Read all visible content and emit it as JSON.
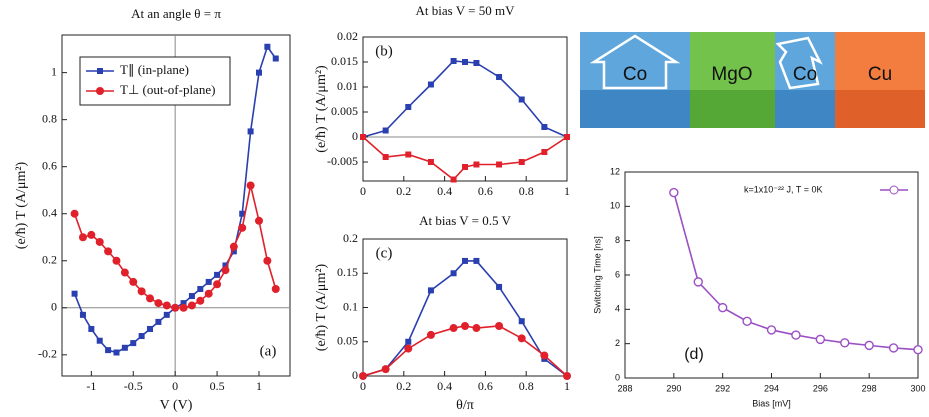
{
  "chart_data": [
    {
      "type": "line",
      "title": "At an angle θ = π",
      "xlabel": "V  (V)",
      "ylabel": "(e/ħ) T   (A/μm²)",
      "annotation": "(a)",
      "x": [
        -1.2,
        -1.1,
        -1.0,
        -0.9,
        -0.8,
        -0.7,
        -0.6,
        -0.5,
        -0.4,
        -0.3,
        -0.2,
        -0.1,
        0,
        0.1,
        0.2,
        0.3,
        0.4,
        0.5,
        0.6,
        0.7,
        0.8,
        0.9,
        1.0,
        1.1,
        1.2
      ],
      "series": [
        {
          "name": "T∥  (in-plane)",
          "color": "#2a3fb0",
          "marker": "square",
          "values": [
            0.06,
            -0.03,
            -0.09,
            -0.14,
            -0.18,
            -0.19,
            -0.17,
            -0.15,
            -0.12,
            -0.09,
            -0.06,
            -0.03,
            0.0,
            0.02,
            0.05,
            0.08,
            0.11,
            0.14,
            0.18,
            0.24,
            0.4,
            0.75,
            1.0,
            1.11,
            1.06
          ]
        },
        {
          "name": "T⊥  (out-of-plane)",
          "color": "#e0202a",
          "marker": "circle",
          "values": [
            0.4,
            0.3,
            0.31,
            0.28,
            0.24,
            0.2,
            0.15,
            0.11,
            0.07,
            0.04,
            0.02,
            0.01,
            0.0,
            0.0,
            0.01,
            0.03,
            0.06,
            0.1,
            0.16,
            0.26,
            0.34,
            0.52,
            0.37,
            0.2,
            0.08
          ]
        }
      ],
      "xlim": [
        -1.35,
        1.37
      ],
      "ylim": [
        -0.29,
        1.16
      ],
      "xticks": [
        -1,
        -0.5,
        0,
        0.5,
        1
      ],
      "yticks": [
        -0.2,
        0,
        0.2,
        0.4,
        0.6,
        0.8,
        1
      ],
      "legend": "upper left"
    },
    {
      "type": "line",
      "title": "At bias V = 50 mV",
      "ylabel": "(e/ħ) T   (A/μm²)",
      "annotation": "(b)",
      "x": [
        0,
        0.111,
        0.222,
        0.333,
        0.444,
        0.5,
        0.556,
        0.667,
        0.778,
        0.889,
        1
      ],
      "series": [
        {
          "color": "#2a3fb0",
          "marker": "square",
          "values": [
            0,
            0.0013,
            0.006,
            0.0105,
            0.0152,
            0.015,
            0.0148,
            0.012,
            0.0075,
            0.002,
            0
          ]
        },
        {
          "color": "#e0202a",
          "marker": "square",
          "values": [
            0,
            -0.004,
            -0.0035,
            -0.005,
            -0.0085,
            -0.006,
            -0.0055,
            -0.0055,
            -0.005,
            -0.003,
            0
          ]
        }
      ],
      "xlim": [
        0,
        1
      ],
      "ylim": [
        -0.0088,
        0.02
      ],
      "xticks": [
        0,
        0.2,
        0.4,
        0.6,
        0.8,
        1
      ],
      "yticks": [
        -0.005,
        0,
        0.005,
        0.01,
        0.015,
        0.02
      ]
    },
    {
      "type": "line",
      "title": "At bias V = 0.5 V",
      "xlabel": "θ/π",
      "ylabel": "(e/ħ) T   (A/μm²)",
      "annotation": "(c)",
      "x": [
        0,
        0.111,
        0.222,
        0.333,
        0.444,
        0.5,
        0.556,
        0.667,
        0.778,
        0.889,
        1
      ],
      "series": [
        {
          "color": "#2a3fb0",
          "marker": "square",
          "values": [
            0,
            0.01,
            0.05,
            0.125,
            0.15,
            0.168,
            0.168,
            0.13,
            0.08,
            0.025,
            0
          ]
        },
        {
          "color": "#e0202a",
          "marker": "circle",
          "values": [
            0,
            0.01,
            0.04,
            0.06,
            0.07,
            0.073,
            0.07,
            0.073,
            0.055,
            0.03,
            0
          ]
        }
      ],
      "xlim": [
        0,
        1
      ],
      "ylim": [
        0,
        0.2
      ],
      "xticks": [
        0,
        0.2,
        0.4,
        0.6,
        0.8,
        1
      ],
      "yticks": [
        0,
        0.05,
        0.1,
        0.15,
        0.2
      ]
    },
    {
      "type": "line",
      "xlabel": "Bias [mV]",
      "ylabel": "Switching Time [ns]",
      "annotation": "(d)",
      "x": [
        290,
        291,
        292,
        293,
        294,
        295,
        296,
        297,
        298,
        299,
        300
      ],
      "series": [
        {
          "name": "k=1x10⁻²² J, T = 0K",
          "color": "#9b4fc4",
          "marker": "open-circle",
          "values": [
            10.8,
            5.6,
            4.1,
            3.3,
            2.8,
            2.5,
            2.25,
            2.05,
            1.9,
            1.75,
            1.65
          ]
        }
      ],
      "xlim": [
        288,
        300
      ],
      "ylim": [
        0,
        12
      ],
      "xticks": [
        288,
        290,
        292,
        294,
        296,
        298,
        300
      ],
      "yticks": [
        0,
        2,
        4,
        6,
        8,
        10,
        12
      ],
      "legend": "upper right"
    }
  ],
  "diagram": {
    "layers": [
      "Co",
      "MgO",
      "Co",
      "Cu"
    ]
  }
}
